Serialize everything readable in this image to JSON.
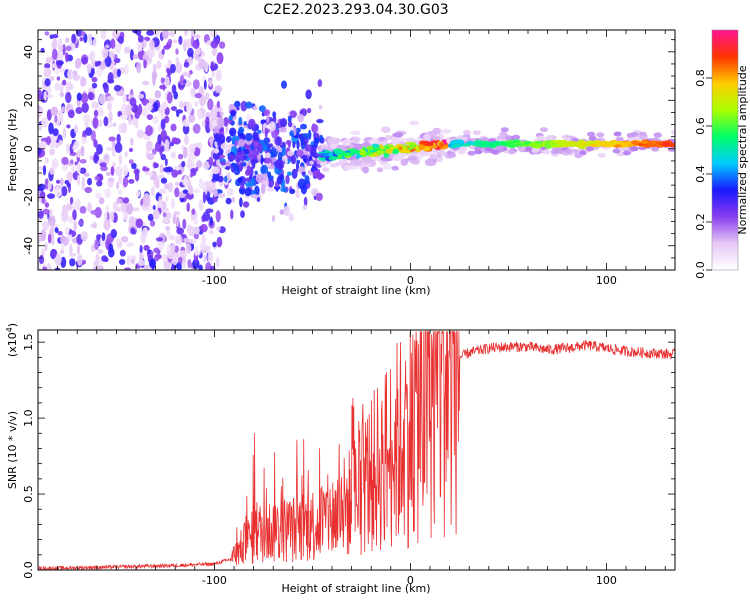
{
  "title": "C2E2.2023.293.04.30.G03",
  "chart_data": [
    {
      "type": "heatmap",
      "xlabel": "Height of straight line (km)",
      "ylabel": "Frequency (Hz)",
      "xlim": [
        -190,
        135
      ],
      "ylim": [
        -50,
        49
      ],
      "xticks": [
        -100,
        0,
        100
      ],
      "yticks": [
        -40,
        -20,
        0,
        20,
        40
      ],
      "colorbar": {
        "label": "Normalized spectral amplitude",
        "range": [
          0,
          1
        ],
        "ticks": [
          "0.0",
          "0.2",
          "0.4",
          "0.6",
          "0.8"
        ],
        "tick_values": [
          0,
          0.2,
          0.4,
          0.6,
          0.8
        ],
        "colors": [
          "#ffffff",
          "#e6c8f5",
          "#8a3cf0",
          "#1a1aff",
          "#00ccff",
          "#00ff66",
          "#aaff00",
          "#ffcc00",
          "#ff3300",
          "#ff1493"
        ]
      },
      "regions": [
        {
          "name": "noise",
          "x": [
            -190,
            -100
          ],
          "freq_range": [
            -50,
            49
          ],
          "amplitude": 0.1
        },
        {
          "name": "spread",
          "x": [
            -100,
            -45
          ],
          "freq_center": -2,
          "freq_spread": 14,
          "amplitude": 0.25
        },
        {
          "name": "converging",
          "x": [
            -45,
            20
          ],
          "freq_start": -3,
          "freq_end": 2,
          "amplitude": 0.6
        },
        {
          "name": "steady",
          "x": [
            20,
            135
          ],
          "freq": 2,
          "amplitude": 0.55
        }
      ]
    },
    {
      "type": "line",
      "xlabel": "Height of straight line (km)",
      "ylabel": "SNR (10 * v/v)",
      "scale_label": "(x10",
      "scale_exp": "4",
      "scale_close": ")",
      "xlim": [
        -190,
        135
      ],
      "ylim": [
        0,
        1.58
      ],
      "xticks": [
        -100,
        0,
        100
      ],
      "yticks": [
        "0.0",
        "0.5",
        "1.0",
        "1.5"
      ],
      "ytick_values": [
        0,
        0.5,
        1.0,
        1.5
      ],
      "color": "#e83030",
      "series": [
        {
          "x": [
            -190,
            -150,
            -120,
            -100,
            -92,
            -88,
            -84,
            -80,
            -76,
            -70,
            -60,
            -50,
            -45,
            -40,
            -35,
            -30,
            -25,
            -20,
            -15,
            -12,
            -10,
            -5,
            0,
            5,
            10,
            15,
            20,
            25,
            30,
            40,
            50,
            60,
            70,
            80,
            90,
            100,
            110,
            120,
            135
          ],
          "y": [
            0.01,
            0.02,
            0.03,
            0.04,
            0.07,
            0.12,
            0.18,
            0.22,
            0.25,
            0.26,
            0.27,
            0.3,
            0.33,
            0.35,
            0.4,
            0.45,
            0.55,
            0.62,
            0.7,
            0.75,
            0.78,
            0.85,
            0.95,
            1.05,
            1.15,
            1.25,
            1.35,
            1.4,
            1.43,
            1.46,
            1.47,
            1.47,
            1.45,
            1.46,
            1.48,
            1.46,
            1.44,
            1.43,
            1.42
          ]
        }
      ]
    }
  ]
}
